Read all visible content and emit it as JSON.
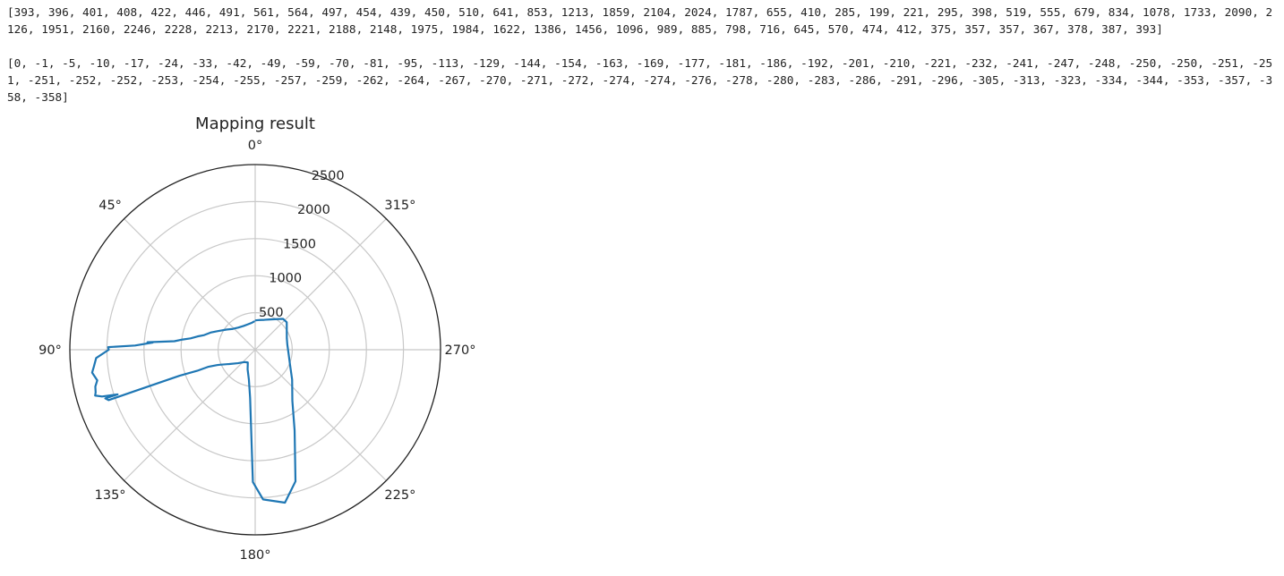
{
  "output": {
    "line1": "[393, 396, 401, 408, 422, 446, 491, 561, 564, 497, 454, 439, 450, 510, 641, 853, 1213, 1859, 2104, 2024, 1787, 655, 410, 285, 199, 221, 295, 398, 519, 555, 679, 834, 1078, 1733, 2090, 2126, 1951, 2160, 2246, 2228, 2213, 2170, 2221, 2188, 2148, 1975, 1984, 1622, 1386, 1456, 1096, 989, 885, 798, 716, 645, 570, 474, 412, 375, 357, 357, 367, 378, 387, 393]",
    "line2": "[0, -1, -5, -10, -17, -24, -33, -42, -49, -59, -70, -81, -95, -113, -129, -144, -154, -163, -169, -177, -181, -186, -192, -201, -210, -221, -232, -241, -247, -248, -250, -250, -251, -251, -251, -252, -252, -253, -254, -255, -257, -259, -262, -264, -267, -270, -271, -272, -274, -274, -276, -278, -280, -283, -286, -291, -296, -305, -313, -323, -334, -344, -353, -357, -358, -358]"
  },
  "chart_data": {
    "type": "line",
    "projection": "polar",
    "title": "Mapping result",
    "theta_zero_location": "top",
    "theta_direction": "counterclockwise",
    "theta_unit": "degrees",
    "theta_tick_labels": [
      "0°",
      "45°",
      "90°",
      "135°",
      "180°",
      "225°",
      "270°",
      "315°"
    ],
    "radial_ticks": [
      500,
      1000,
      1500,
      2000,
      2500
    ],
    "rlim": [
      0,
      2500
    ],
    "radial_tick_labels": [
      "500",
      "1000",
      "1500",
      "2000",
      "2500"
    ],
    "grid": true,
    "line_color": "#1f77b4",
    "r": [
      393,
      396,
      401,
      408,
      422,
      446,
      491,
      561,
      564,
      497,
      454,
      439,
      450,
      510,
      641,
      853,
      1213,
      1859,
      2104,
      2024,
      1787,
      655,
      410,
      285,
      199,
      221,
      295,
      398,
      519,
      555,
      679,
      834,
      1078,
      1733,
      2090,
      2126,
      1951,
      2160,
      2246,
      2228,
      2213,
      2170,
      2221,
      2188,
      2148,
      1975,
      1984,
      1622,
      1386,
      1456,
      1096,
      989,
      885,
      798,
      716,
      645,
      570,
      474,
      412,
      375,
      357,
      357,
      367,
      378,
      387,
      393
    ],
    "theta": [
      0,
      -1,
      -5,
      -10,
      -17,
      -24,
      -33,
      -42,
      -49,
      -59,
      -70,
      -81,
      -95,
      -113,
      -129,
      -144,
      -154,
      -163,
      -169,
      -177,
      -181,
      -186,
      -192,
      -201,
      -210,
      -221,
      -232,
      -241,
      -247,
      -248,
      -250,
      -250,
      -251,
      -251,
      -251,
      -252,
      -252,
      -253,
      -254,
      -255,
      -257,
      -259,
      -262,
      -264,
      -267,
      -270,
      -271,
      -272,
      -274,
      -274,
      -276,
      -278,
      -280,
      -283,
      -286,
      -291,
      -296,
      -305,
      -313,
      -323,
      -334,
      -344,
      -353,
      -357,
      -358,
      -358
    ]
  }
}
